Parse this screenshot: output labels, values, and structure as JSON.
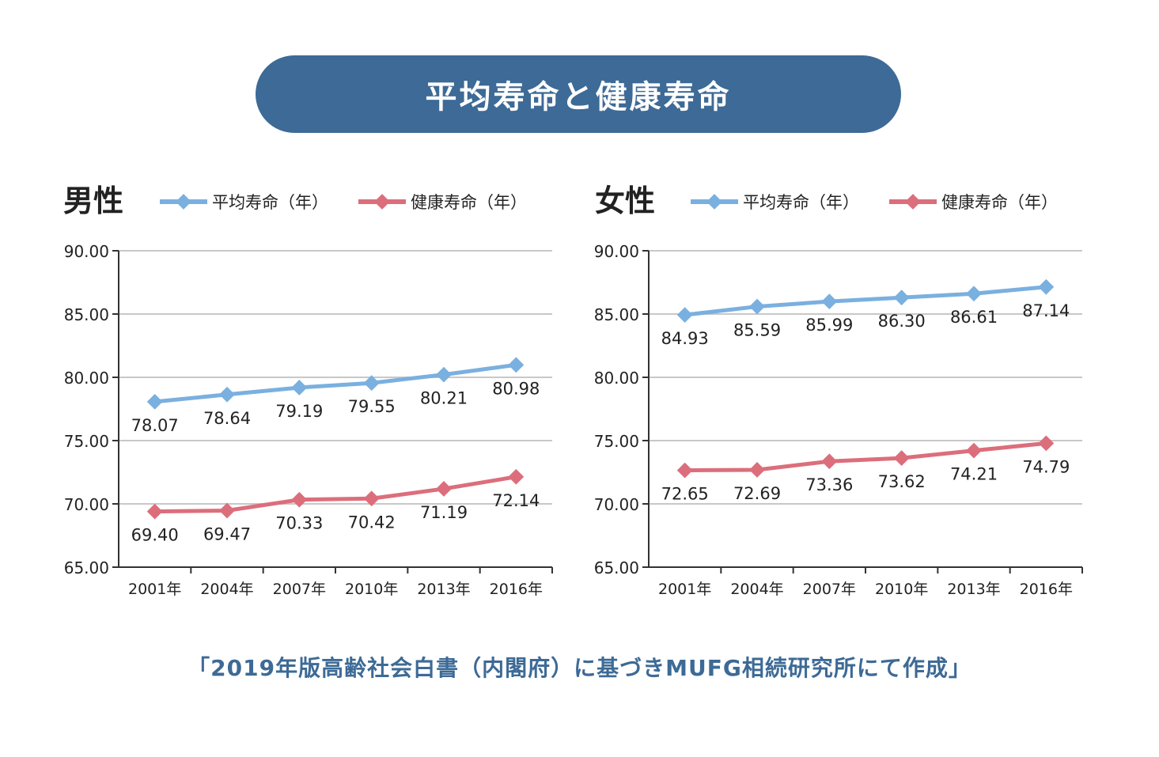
{
  "header": {
    "title": "平均寿命と健康寿命"
  },
  "source_note": "「2019年版高齢社会白書（内閣府）に基づきMUFG相続研究所にて作成」",
  "colors": {
    "banner": "#3d6a96",
    "average": "#7ab0df",
    "healthy": "#dc6e7c",
    "grid": "#c8c8c8",
    "source_text": "#3d6a96"
  },
  "chart_data": [
    {
      "type": "line",
      "title": "男性",
      "categories": [
        "2001年",
        "2004年",
        "2007年",
        "2010年",
        "2013年",
        "2016年"
      ],
      "y_ticks": [
        "90.00",
        "85.00",
        "80.00",
        "75.00",
        "70.00",
        "65.00"
      ],
      "ylim": [
        65,
        90
      ],
      "grid": true,
      "legend_position": "top",
      "series": [
        {
          "name": "平均寿命（年）",
          "values": [
            78.07,
            78.64,
            79.19,
            79.55,
            80.21,
            80.98
          ],
          "labels": [
            "78.07",
            "78.64",
            "79.19",
            "79.55",
            "80.21",
            "80.98"
          ]
        },
        {
          "name": "健康寿命（年）",
          "values": [
            69.4,
            69.47,
            70.33,
            70.42,
            71.19,
            72.14
          ],
          "labels": [
            "69.40",
            "69.47",
            "70.33",
            "70.42",
            "71.19",
            "72.14"
          ]
        }
      ]
    },
    {
      "type": "line",
      "title": "女性",
      "categories": [
        "2001年",
        "2004年",
        "2007年",
        "2010年",
        "2013年",
        "2016年"
      ],
      "y_ticks": [
        "90.00",
        "85.00",
        "80.00",
        "75.00",
        "70.00",
        "65.00"
      ],
      "ylim": [
        65,
        90
      ],
      "grid": true,
      "legend_position": "top",
      "series": [
        {
          "name": "平均寿命（年）",
          "values": [
            84.93,
            85.59,
            85.99,
            86.3,
            86.61,
            87.14
          ],
          "labels": [
            "84.93",
            "85.59",
            "85.99",
            "86.30",
            "86.61",
            "87.14"
          ]
        },
        {
          "name": "健康寿命（年）",
          "values": [
            72.65,
            72.69,
            73.36,
            73.62,
            74.21,
            74.79
          ],
          "labels": [
            "72.65",
            "72.69",
            "73.36",
            "73.62",
            "74.21",
            "74.79"
          ]
        }
      ]
    }
  ]
}
